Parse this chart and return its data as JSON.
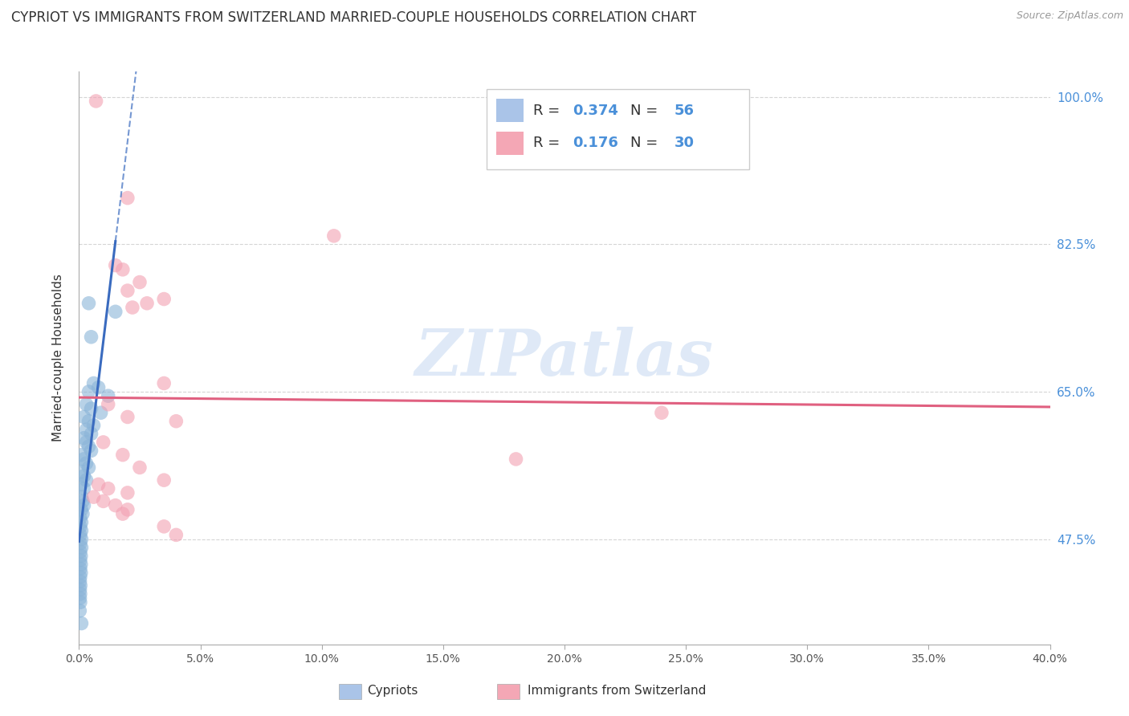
{
  "title": "CYPRIOT VS IMMIGRANTS FROM SWITZERLAND MARRIED-COUPLE HOUSEHOLDS CORRELATION CHART",
  "source": "Source: ZipAtlas.com",
  "ylabel": "Married-couple Households",
  "watermark": "ZIPatlas",
  "xmin": 0.0,
  "xmax": 40.0,
  "ymin": 35.0,
  "ymax": 103.0,
  "yticks": [
    47.5,
    65.0,
    82.5,
    100.0
  ],
  "xtick_vals": [
    0.0,
    5.0,
    10.0,
    15.0,
    20.0,
    25.0,
    30.0,
    35.0,
    40.0
  ],
  "r_blue": 0.374,
  "n_blue": 56,
  "r_pink": 0.176,
  "n_pink": 30,
  "blue_dot_color": "#8ab4d8",
  "pink_dot_color": "#f2a0b2",
  "blue_line_color": "#3a6bbf",
  "pink_line_color": "#e06080",
  "blue_scatter": [
    [
      0.4,
      75.5
    ],
    [
      1.5,
      74.5
    ],
    [
      0.5,
      71.5
    ],
    [
      0.6,
      66.0
    ],
    [
      0.8,
      65.5
    ],
    [
      0.4,
      65.0
    ],
    [
      1.2,
      64.5
    ],
    [
      0.3,
      63.5
    ],
    [
      0.5,
      63.0
    ],
    [
      0.9,
      62.5
    ],
    [
      0.2,
      62.0
    ],
    [
      0.4,
      61.5
    ],
    [
      0.6,
      61.0
    ],
    [
      0.3,
      60.5
    ],
    [
      0.5,
      60.0
    ],
    [
      0.2,
      59.5
    ],
    [
      0.3,
      59.0
    ],
    [
      0.4,
      58.5
    ],
    [
      0.5,
      58.0
    ],
    [
      0.1,
      57.5
    ],
    [
      0.2,
      57.0
    ],
    [
      0.3,
      56.5
    ],
    [
      0.4,
      56.0
    ],
    [
      0.1,
      55.5
    ],
    [
      0.2,
      55.0
    ],
    [
      0.3,
      54.5
    ],
    [
      0.1,
      54.0
    ],
    [
      0.2,
      53.5
    ],
    [
      0.1,
      52.5
    ],
    [
      0.15,
      52.0
    ],
    [
      0.2,
      51.5
    ],
    [
      0.1,
      51.0
    ],
    [
      0.15,
      50.5
    ],
    [
      0.05,
      50.0
    ],
    [
      0.1,
      49.5
    ],
    [
      0.05,
      49.0
    ],
    [
      0.1,
      48.5
    ],
    [
      0.05,
      48.0
    ],
    [
      0.1,
      47.5
    ],
    [
      0.05,
      47.0
    ],
    [
      0.1,
      46.5
    ],
    [
      0.05,
      46.0
    ],
    [
      0.08,
      45.5
    ],
    [
      0.05,
      45.0
    ],
    [
      0.08,
      44.5
    ],
    [
      0.05,
      44.0
    ],
    [
      0.08,
      43.5
    ],
    [
      0.05,
      43.0
    ],
    [
      0.04,
      42.5
    ],
    [
      0.06,
      42.0
    ],
    [
      0.04,
      41.5
    ],
    [
      0.05,
      41.0
    ],
    [
      0.04,
      40.5
    ],
    [
      0.05,
      40.0
    ],
    [
      0.03,
      39.0
    ],
    [
      0.1,
      37.5
    ]
  ],
  "pink_scatter": [
    [
      0.7,
      99.5
    ],
    [
      2.0,
      88.0
    ],
    [
      1.5,
      80.0
    ],
    [
      2.5,
      78.0
    ],
    [
      2.0,
      77.0
    ],
    [
      3.5,
      76.0
    ],
    [
      2.8,
      75.5
    ],
    [
      2.2,
      75.0
    ],
    [
      1.8,
      79.5
    ],
    [
      3.5,
      66.0
    ],
    [
      1.2,
      63.5
    ],
    [
      2.0,
      62.0
    ],
    [
      4.0,
      61.5
    ],
    [
      1.0,
      59.0
    ],
    [
      1.8,
      57.5
    ],
    [
      2.5,
      56.0
    ],
    [
      3.5,
      54.5
    ],
    [
      0.8,
      54.0
    ],
    [
      1.2,
      53.5
    ],
    [
      2.0,
      53.0
    ],
    [
      0.6,
      52.5
    ],
    [
      1.0,
      52.0
    ],
    [
      1.5,
      51.5
    ],
    [
      2.0,
      51.0
    ],
    [
      1.8,
      50.5
    ],
    [
      10.5,
      83.5
    ],
    [
      18.0,
      57.0
    ],
    [
      24.0,
      62.5
    ],
    [
      3.5,
      49.0
    ],
    [
      4.0,
      48.0
    ]
  ],
  "background_color": "#ffffff",
  "grid_color": "#d5d5d5"
}
